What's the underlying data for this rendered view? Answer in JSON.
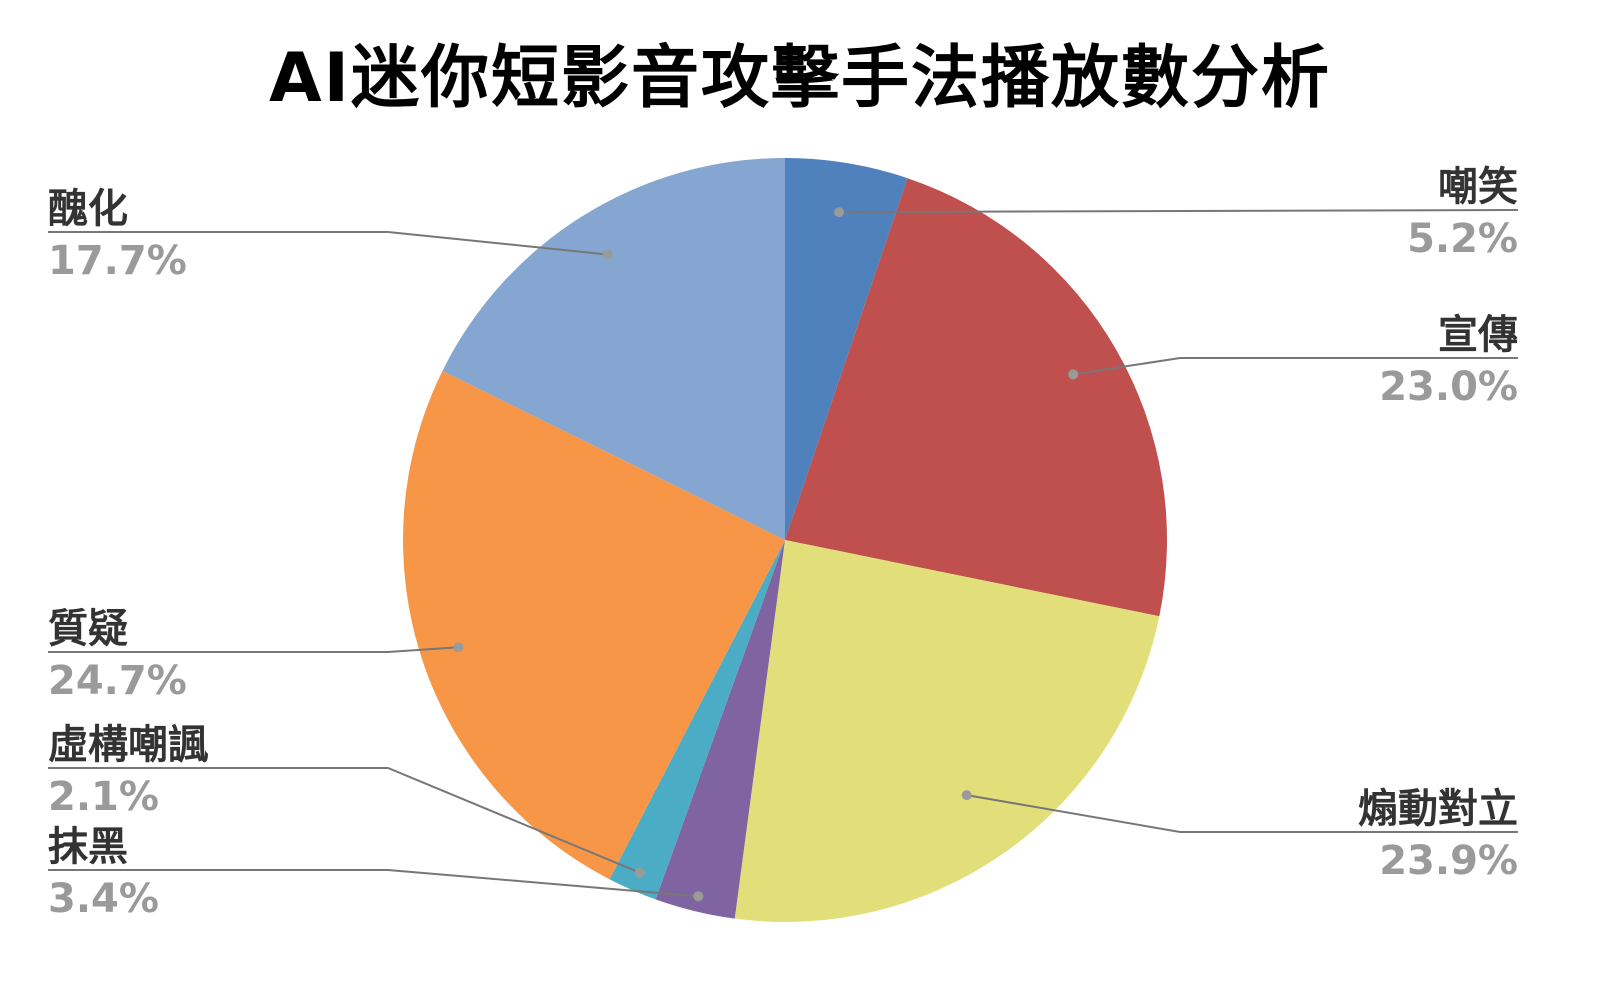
{
  "chart_data": {
    "type": "pie",
    "title": "AI迷你短影音攻擊手法播放數分析",
    "start_angle_deg": 0,
    "direction": "clockwise",
    "slices": [
      {
        "label": "嘲笑",
        "value": 5.2,
        "value_label": "5.2%",
        "color": "#4f81bd",
        "side": "right"
      },
      {
        "label": "宣傳",
        "value": 23.0,
        "value_label": "23.0%",
        "color": "#c0504d",
        "side": "right"
      },
      {
        "label": "煽動對立",
        "value": 23.9,
        "value_label": "23.9%",
        "color": "#e2df7b",
        "side": "right"
      },
      {
        "label": "抹黑",
        "value": 3.4,
        "value_label": "3.4%",
        "color": "#8064a2",
        "side": "left"
      },
      {
        "label": "虛構嘲諷",
        "value": 2.1,
        "value_label": "2.1%",
        "color": "#4bacc6",
        "side": "left"
      },
      {
        "label": "質疑",
        "value": 24.7,
        "value_label": "24.7%",
        "color": "#f79646",
        "side": "left"
      },
      {
        "label": "醜化",
        "value": 17.7,
        "value_label": "17.7%",
        "color": "#85a6d1",
        "side": "left"
      }
    ]
  }
}
